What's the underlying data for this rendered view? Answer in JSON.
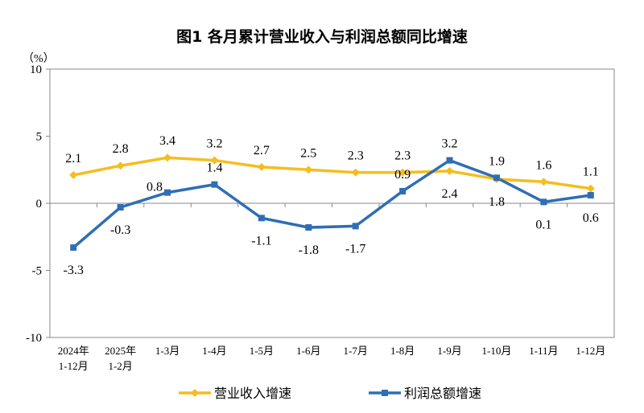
{
  "chart_data": {
    "type": "line",
    "title": "图1  各月累计营业收入与利润总额同比增速",
    "ylabel": "（%）",
    "ylim": [
      -10,
      10
    ],
    "yticks": [
      10,
      5,
      0,
      -5,
      -10
    ],
    "grid": false,
    "legend_position": "bottom",
    "categories": [
      [
        "2024年",
        "1-12月"
      ],
      [
        "2025年",
        "1-2月"
      ],
      [
        "1-3月"
      ],
      [
        "1-4月"
      ],
      [
        "1-5月"
      ],
      [
        "1-6月"
      ],
      [
        "1-7月"
      ],
      [
        "1-8月"
      ],
      [
        "1-9月"
      ],
      [
        "1-10月"
      ],
      [
        "1-11月"
      ],
      [
        "1-12月"
      ]
    ],
    "series": [
      {
        "name": "营业收入增速",
        "color": "#F5BD1F",
        "marker": "diamond",
        "values": [
          2.1,
          2.8,
          3.4,
          3.2,
          2.7,
          2.5,
          2.3,
          2.3,
          2.4,
          1.8,
          1.6,
          1.1
        ]
      },
      {
        "name": "利润总额增速",
        "color": "#2E6EB5",
        "marker": "square",
        "values": [
          -3.3,
          -0.3,
          0.8,
          1.4,
          -1.1,
          -1.8,
          -1.7,
          0.9,
          3.2,
          1.9,
          0.1,
          0.6
        ]
      }
    ]
  }
}
